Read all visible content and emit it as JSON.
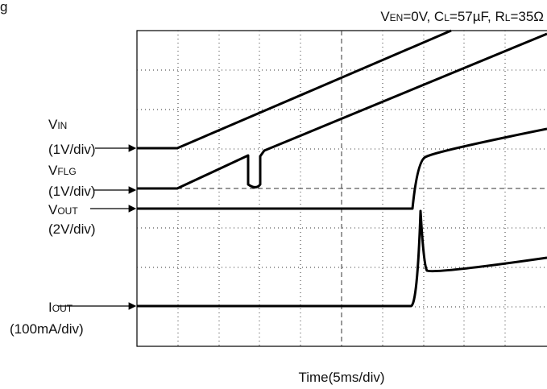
{
  "corner_text": "g",
  "title": [
    {
      "main": "V",
      "sub": "EN"
    },
    {
      "main": "=0V, C"
    },
    {
      "sub": "L"
    },
    {
      "main": "=57µF, R"
    },
    {
      "sub": "L"
    },
    {
      "main": "=35Ω"
    }
  ],
  "traces": [
    {
      "name": {
        "main": "V",
        "sub": "IN"
      },
      "scale": "(1V/div)"
    },
    {
      "name": {
        "main": "V",
        "sub": "FLG"
      },
      "scale": "(1V/div)"
    },
    {
      "name": {
        "main": "V",
        "sub": "OUT"
      },
      "scale": "(2V/div)"
    },
    {
      "name": {
        "main": "I",
        "sub": "OUT"
      },
      "scale": "(100mA/div)"
    }
  ],
  "x_label": "Time(5ms/div)"
}
